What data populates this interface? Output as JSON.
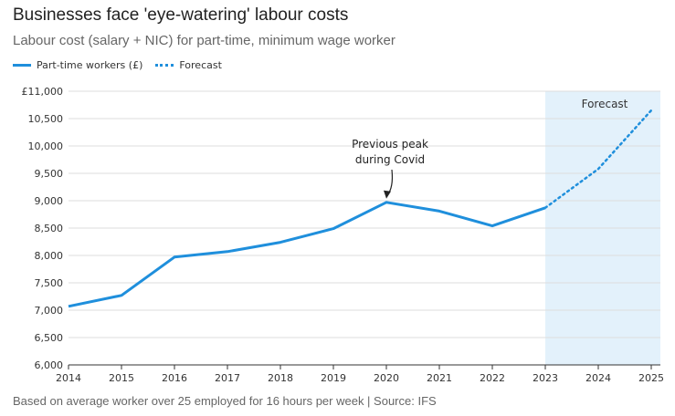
{
  "title": "Businesses face 'eye-watering' labour costs",
  "subtitle": "Labour cost (salary + NIC) for part-time, minimum wage worker",
  "legend": {
    "actual": "Part-time workers (£)",
    "forecast": "Forecast"
  },
  "footer": "Based on average worker over 25 employed for 16 hours per week | Source: IFS",
  "colors": {
    "line": "#1f8fdc",
    "forecast_band": "#e3f1fb",
    "grid": "#dddddd",
    "axis": "#333333"
  },
  "chart_data": {
    "type": "line",
    "title": "Businesses face 'eye-watering' labour costs",
    "subtitle": "Labour cost (salary + NIC) for part-time, minimum wage worker",
    "xlabel": "",
    "ylabel": "",
    "x": [
      2014,
      2015,
      2016,
      2017,
      2018,
      2019,
      2020,
      2021,
      2022,
      2023,
      2024,
      2025
    ],
    "xlim": [
      2014,
      2025
    ],
    "ylim": [
      6000,
      11000
    ],
    "yticks": [
      6000,
      6500,
      7000,
      7500,
      8000,
      8500,
      9000,
      9500,
      10000,
      10500,
      11000
    ],
    "ytick_labels": [
      "6,000",
      "6,500",
      "7,000",
      "7,500",
      "8,000",
      "8,500",
      "9,000",
      "9,500",
      "10,000",
      "10,500",
      "£11,000"
    ],
    "grid": true,
    "legend_position": "top-left",
    "series": [
      {
        "name": "Part-time workers (£)",
        "style": "solid",
        "points": [
          [
            2014,
            7070
          ],
          [
            2015,
            7270
          ],
          [
            2016,
            7970
          ],
          [
            2017,
            8070
          ],
          [
            2018,
            8240
          ],
          [
            2019,
            8490
          ],
          [
            2020,
            8970
          ],
          [
            2021,
            8810
          ],
          [
            2022,
            8540
          ],
          [
            2023,
            8870
          ]
        ]
      },
      {
        "name": "Forecast",
        "style": "dotted",
        "points": [
          [
            2023,
            8870
          ],
          [
            2024,
            9580
          ],
          [
            2025,
            10650
          ]
        ]
      }
    ],
    "forecast_region": {
      "from": 2023,
      "to": 2025,
      "label": "Forecast"
    },
    "annotations": [
      {
        "lines": [
          "Previous peak",
          "during Covid"
        ],
        "x": 2020,
        "y": 8970
      }
    ]
  }
}
